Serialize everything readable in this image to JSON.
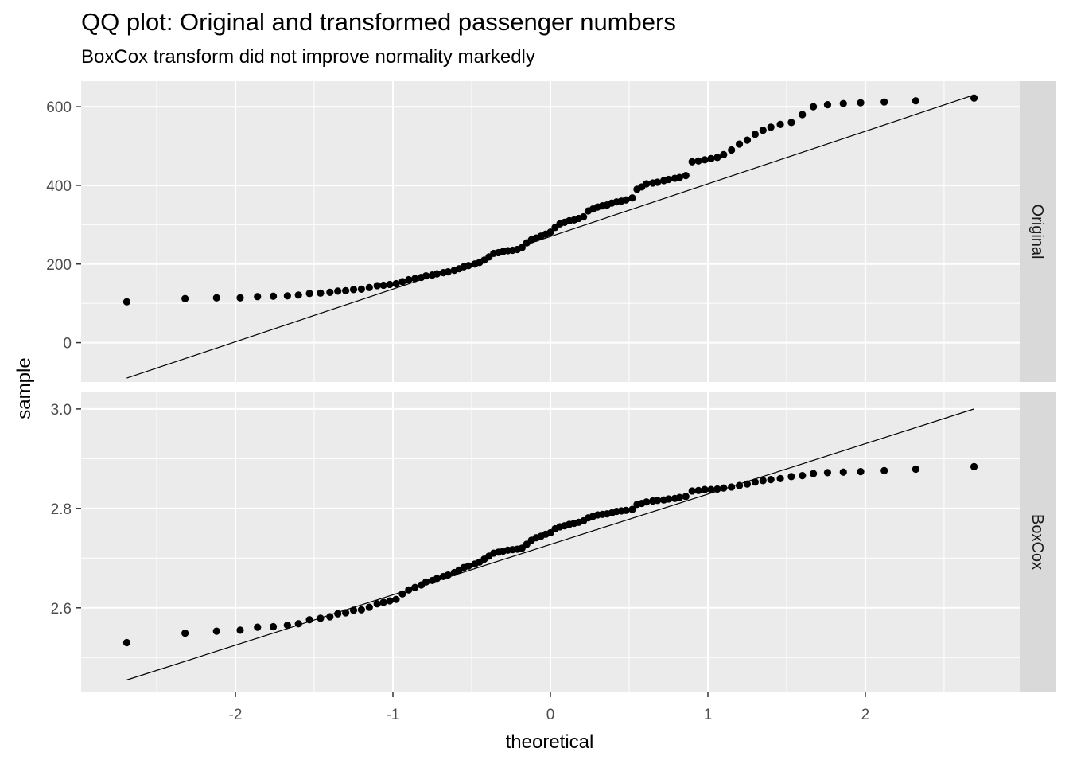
{
  "chart_data": {
    "type": "scatter",
    "title": "QQ plot: Original and transformed passenger numbers",
    "subtitle": "BoxCox transform did not improve normality markedly",
    "xlabel": "theoretical",
    "ylabel": "sample",
    "xlim": [
      -2.98,
      2.98
    ],
    "x_ticks": [
      -2,
      -1,
      0,
      1,
      2
    ],
    "x_tick_labels": [
      "-2",
      "-1",
      "0",
      "1",
      "2"
    ],
    "grid": true,
    "panels": [
      {
        "strip_label": "Original",
        "ylim": [
          -100,
          665
        ],
        "y_ticks": [
          0,
          200,
          400,
          600
        ],
        "y_tick_labels": [
          "0",
          "200",
          "400",
          "600"
        ],
        "reference_line": {
          "x": [
            -2.69,
            2.69
          ],
          "y": [
            -90,
            630
          ]
        },
        "x": [
          -2.69,
          -2.32,
          -2.12,
          -1.97,
          -1.86,
          -1.76,
          -1.67,
          -1.6,
          -1.53,
          -1.46,
          -1.4,
          -1.35,
          -1.3,
          -1.25,
          -1.2,
          -1.15,
          -1.1,
          -1.06,
          -1.02,
          -0.98,
          -0.94,
          -0.9,
          -0.86,
          -0.82,
          -0.79,
          -0.75,
          -0.72,
          -0.68,
          -0.65,
          -0.61,
          -0.58,
          -0.55,
          -0.52,
          -0.48,
          -0.45,
          -0.42,
          -0.39,
          -0.36,
          -0.33,
          -0.3,
          -0.27,
          -0.24,
          -0.21,
          -0.18,
          -0.15,
          -0.12,
          -0.09,
          -0.06,
          -0.03,
          0.0,
          0.03,
          0.06,
          0.09,
          0.12,
          0.15,
          0.18,
          0.21,
          0.24,
          0.27,
          0.3,
          0.33,
          0.36,
          0.39,
          0.42,
          0.45,
          0.48,
          0.52,
          0.55,
          0.58,
          0.61,
          0.65,
          0.68,
          0.72,
          0.75,
          0.79,
          0.82,
          0.86,
          0.9,
          0.94,
          0.98,
          1.02,
          1.06,
          1.1,
          1.15,
          1.2,
          1.25,
          1.3,
          1.35,
          1.4,
          1.46,
          1.53,
          1.6,
          1.67,
          1.76,
          1.86,
          1.97,
          2.12,
          2.32,
          2.69
        ],
        "y": [
          104,
          112,
          114,
          114,
          117,
          118,
          119,
          121,
          125,
          126,
          128,
          131,
          132,
          135,
          136,
          140,
          145,
          146,
          148,
          150,
          155,
          160,
          163,
          166,
          170,
          172,
          175,
          178,
          180,
          184,
          188,
          193,
          196,
          200,
          204,
          210,
          218,
          227,
          229,
          232,
          234,
          235,
          237,
          242,
          254,
          262,
          266,
          271,
          276,
          281,
          293,
          302,
          306,
          310,
          312,
          316,
          320,
          335,
          340,
          345,
          348,
          350,
          355,
          358,
          360,
          363,
          368,
          390,
          396,
          404,
          406,
          408,
          412,
          415,
          418,
          420,
          425,
          460,
          462,
          465,
          468,
          471,
          478,
          490,
          505,
          515,
          530,
          540,
          548,
          555,
          560,
          580,
          600,
          605,
          608,
          610,
          612,
          615,
          622
        ]
      },
      {
        "strip_label": "BoxCox",
        "ylim": [
          2.43,
          3.035
        ],
        "y_ticks": [
          2.6,
          2.8,
          3.0
        ],
        "y_tick_labels": [
          "2.6",
          "2.8",
          "3.0"
        ],
        "reference_line": {
          "x": [
            -2.69,
            2.69
          ],
          "y": [
            2.455,
            3.0
          ]
        },
        "x": [
          -2.69,
          -2.32,
          -2.12,
          -1.97,
          -1.86,
          -1.76,
          -1.67,
          -1.6,
          -1.53,
          -1.46,
          -1.4,
          -1.35,
          -1.3,
          -1.25,
          -1.2,
          -1.15,
          -1.1,
          -1.06,
          -1.02,
          -0.98,
          -0.94,
          -0.9,
          -0.86,
          -0.82,
          -0.79,
          -0.75,
          -0.72,
          -0.68,
          -0.65,
          -0.61,
          -0.58,
          -0.55,
          -0.52,
          -0.48,
          -0.45,
          -0.42,
          -0.39,
          -0.36,
          -0.33,
          -0.3,
          -0.27,
          -0.24,
          -0.21,
          -0.18,
          -0.15,
          -0.12,
          -0.09,
          -0.06,
          -0.03,
          0.0,
          0.03,
          0.06,
          0.09,
          0.12,
          0.15,
          0.18,
          0.21,
          0.24,
          0.27,
          0.3,
          0.33,
          0.36,
          0.39,
          0.42,
          0.45,
          0.48,
          0.52,
          0.55,
          0.58,
          0.61,
          0.65,
          0.68,
          0.72,
          0.75,
          0.79,
          0.82,
          0.86,
          0.9,
          0.94,
          0.98,
          1.02,
          1.06,
          1.1,
          1.15,
          1.2,
          1.25,
          1.3,
          1.35,
          1.4,
          1.46,
          1.53,
          1.6,
          1.67,
          1.76,
          1.86,
          1.97,
          2.12,
          2.32,
          2.69
        ],
        "y": [
          2.53,
          2.549,
          2.553,
          2.555,
          2.561,
          2.562,
          2.565,
          2.568,
          2.576,
          2.579,
          2.582,
          2.588,
          2.59,
          2.595,
          2.596,
          2.601,
          2.608,
          2.611,
          2.614,
          2.617,
          2.628,
          2.636,
          2.641,
          2.646,
          2.652,
          2.655,
          2.659,
          2.663,
          2.666,
          2.671,
          2.676,
          2.681,
          2.684,
          2.688,
          2.692,
          2.698,
          2.704,
          2.71,
          2.712,
          2.714,
          2.716,
          2.717,
          2.718,
          2.72,
          2.728,
          2.736,
          2.741,
          2.744,
          2.748,
          2.751,
          2.759,
          2.763,
          2.765,
          2.768,
          2.77,
          2.772,
          2.775,
          2.781,
          2.784,
          2.787,
          2.788,
          2.789,
          2.791,
          2.794,
          2.795,
          2.796,
          2.798,
          2.808,
          2.81,
          2.813,
          2.815,
          2.816,
          2.817,
          2.819,
          2.82,
          2.822,
          2.824,
          2.835,
          2.836,
          2.838,
          2.838,
          2.839,
          2.841,
          2.843,
          2.846,
          2.849,
          2.853,
          2.856,
          2.858,
          2.86,
          2.864,
          2.866,
          2.87,
          2.872,
          2.873,
          2.874,
          2.876,
          2.879,
          2.884
        ]
      }
    ]
  }
}
